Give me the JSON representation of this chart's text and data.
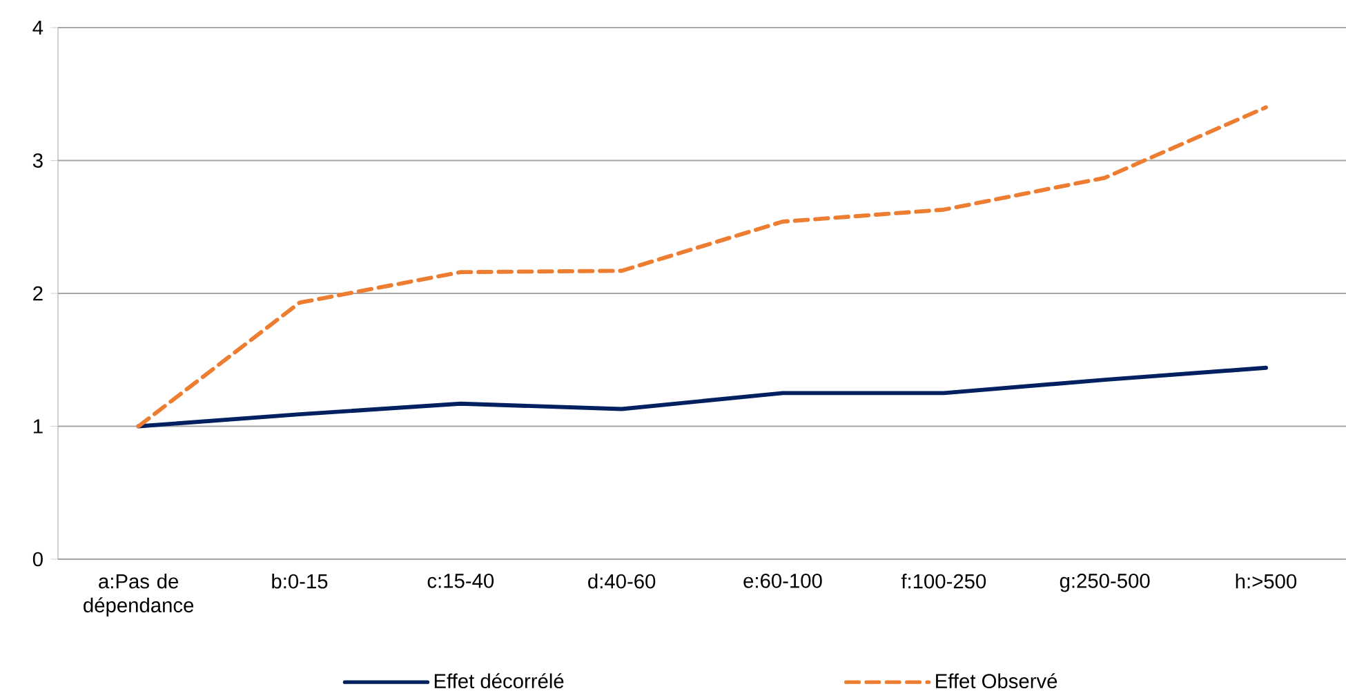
{
  "chart_data": {
    "type": "line",
    "categories": [
      "a:Pas de dépendance",
      "b:0-15",
      "c:15-40",
      "d:40-60",
      "e:60-100",
      "f:100-250",
      "g:250-500",
      "h:>500"
    ],
    "series": [
      {
        "name": "Effet décorrélé",
        "color": "#002060",
        "line_style": "solid",
        "values": [
          1.0,
          1.09,
          1.17,
          1.13,
          1.25,
          1.25,
          1.35,
          1.44
        ]
      },
      {
        "name": "Effet Observé",
        "color": "#ed7d31",
        "line_style": "dashed",
        "values": [
          1.0,
          1.93,
          2.16,
          2.17,
          2.54,
          2.63,
          2.87,
          3.4
        ]
      }
    ],
    "ylim": [
      0,
      4
    ],
    "yticks": [
      0,
      1,
      2,
      3,
      4
    ],
    "grid": "y",
    "legend": "bottom"
  }
}
